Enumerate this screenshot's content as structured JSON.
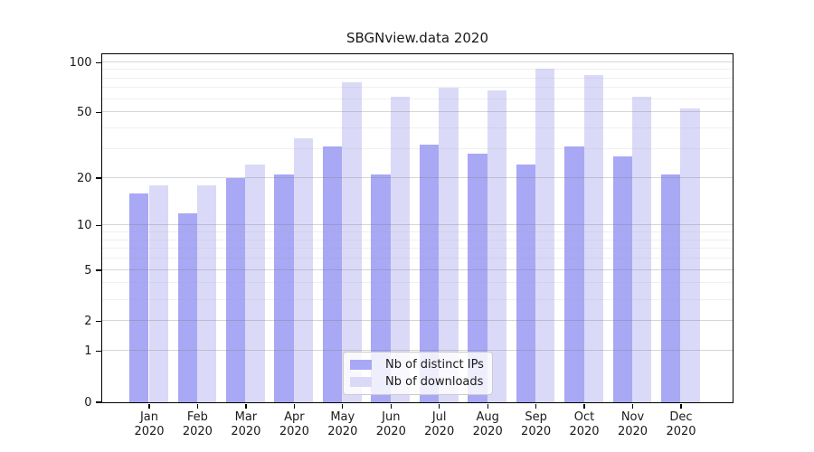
{
  "title": "SBGNview.data 2020",
  "chart_data": {
    "type": "bar",
    "title": "SBGNview.data 2020",
    "xlabel": "",
    "ylabel": "",
    "y_scale": "log1p",
    "y_ticks": [
      0,
      1,
      2,
      5,
      10,
      20,
      50,
      100
    ],
    "y_minor_gridlines": [
      3,
      4,
      6,
      7,
      8,
      9,
      30,
      40,
      60,
      70,
      80,
      90
    ],
    "ylim": [
      0,
      113
    ],
    "grid": true,
    "categories": [
      "Jan 2020",
      "Feb 2020",
      "Mar 2020",
      "Apr 2020",
      "May 2020",
      "Jun 2020",
      "Jul 2020",
      "Aug 2020",
      "Sep 2020",
      "Oct 2020",
      "Nov 2020",
      "Dec 2020"
    ],
    "series": [
      {
        "name": "Nb of distinct IPs",
        "color": "#a8a8f5",
        "values": [
          16,
          12,
          20,
          21,
          31,
          21,
          32,
          28,
          24,
          31,
          27,
          21
        ]
      },
      {
        "name": "Nb of downloads",
        "color": "#dadaf8",
        "values": [
          18,
          18,
          24,
          35,
          76,
          62,
          70,
          68,
          91,
          84,
          62,
          53
        ]
      }
    ],
    "legend_position": "bottom-center"
  },
  "colors": {
    "background": "#ffffff",
    "axis": "#000000",
    "text": "#1a1a1a",
    "grid_major": "#d2d2d2",
    "grid_minor": "#eaeaea",
    "legend_border": "#cccccc"
  }
}
